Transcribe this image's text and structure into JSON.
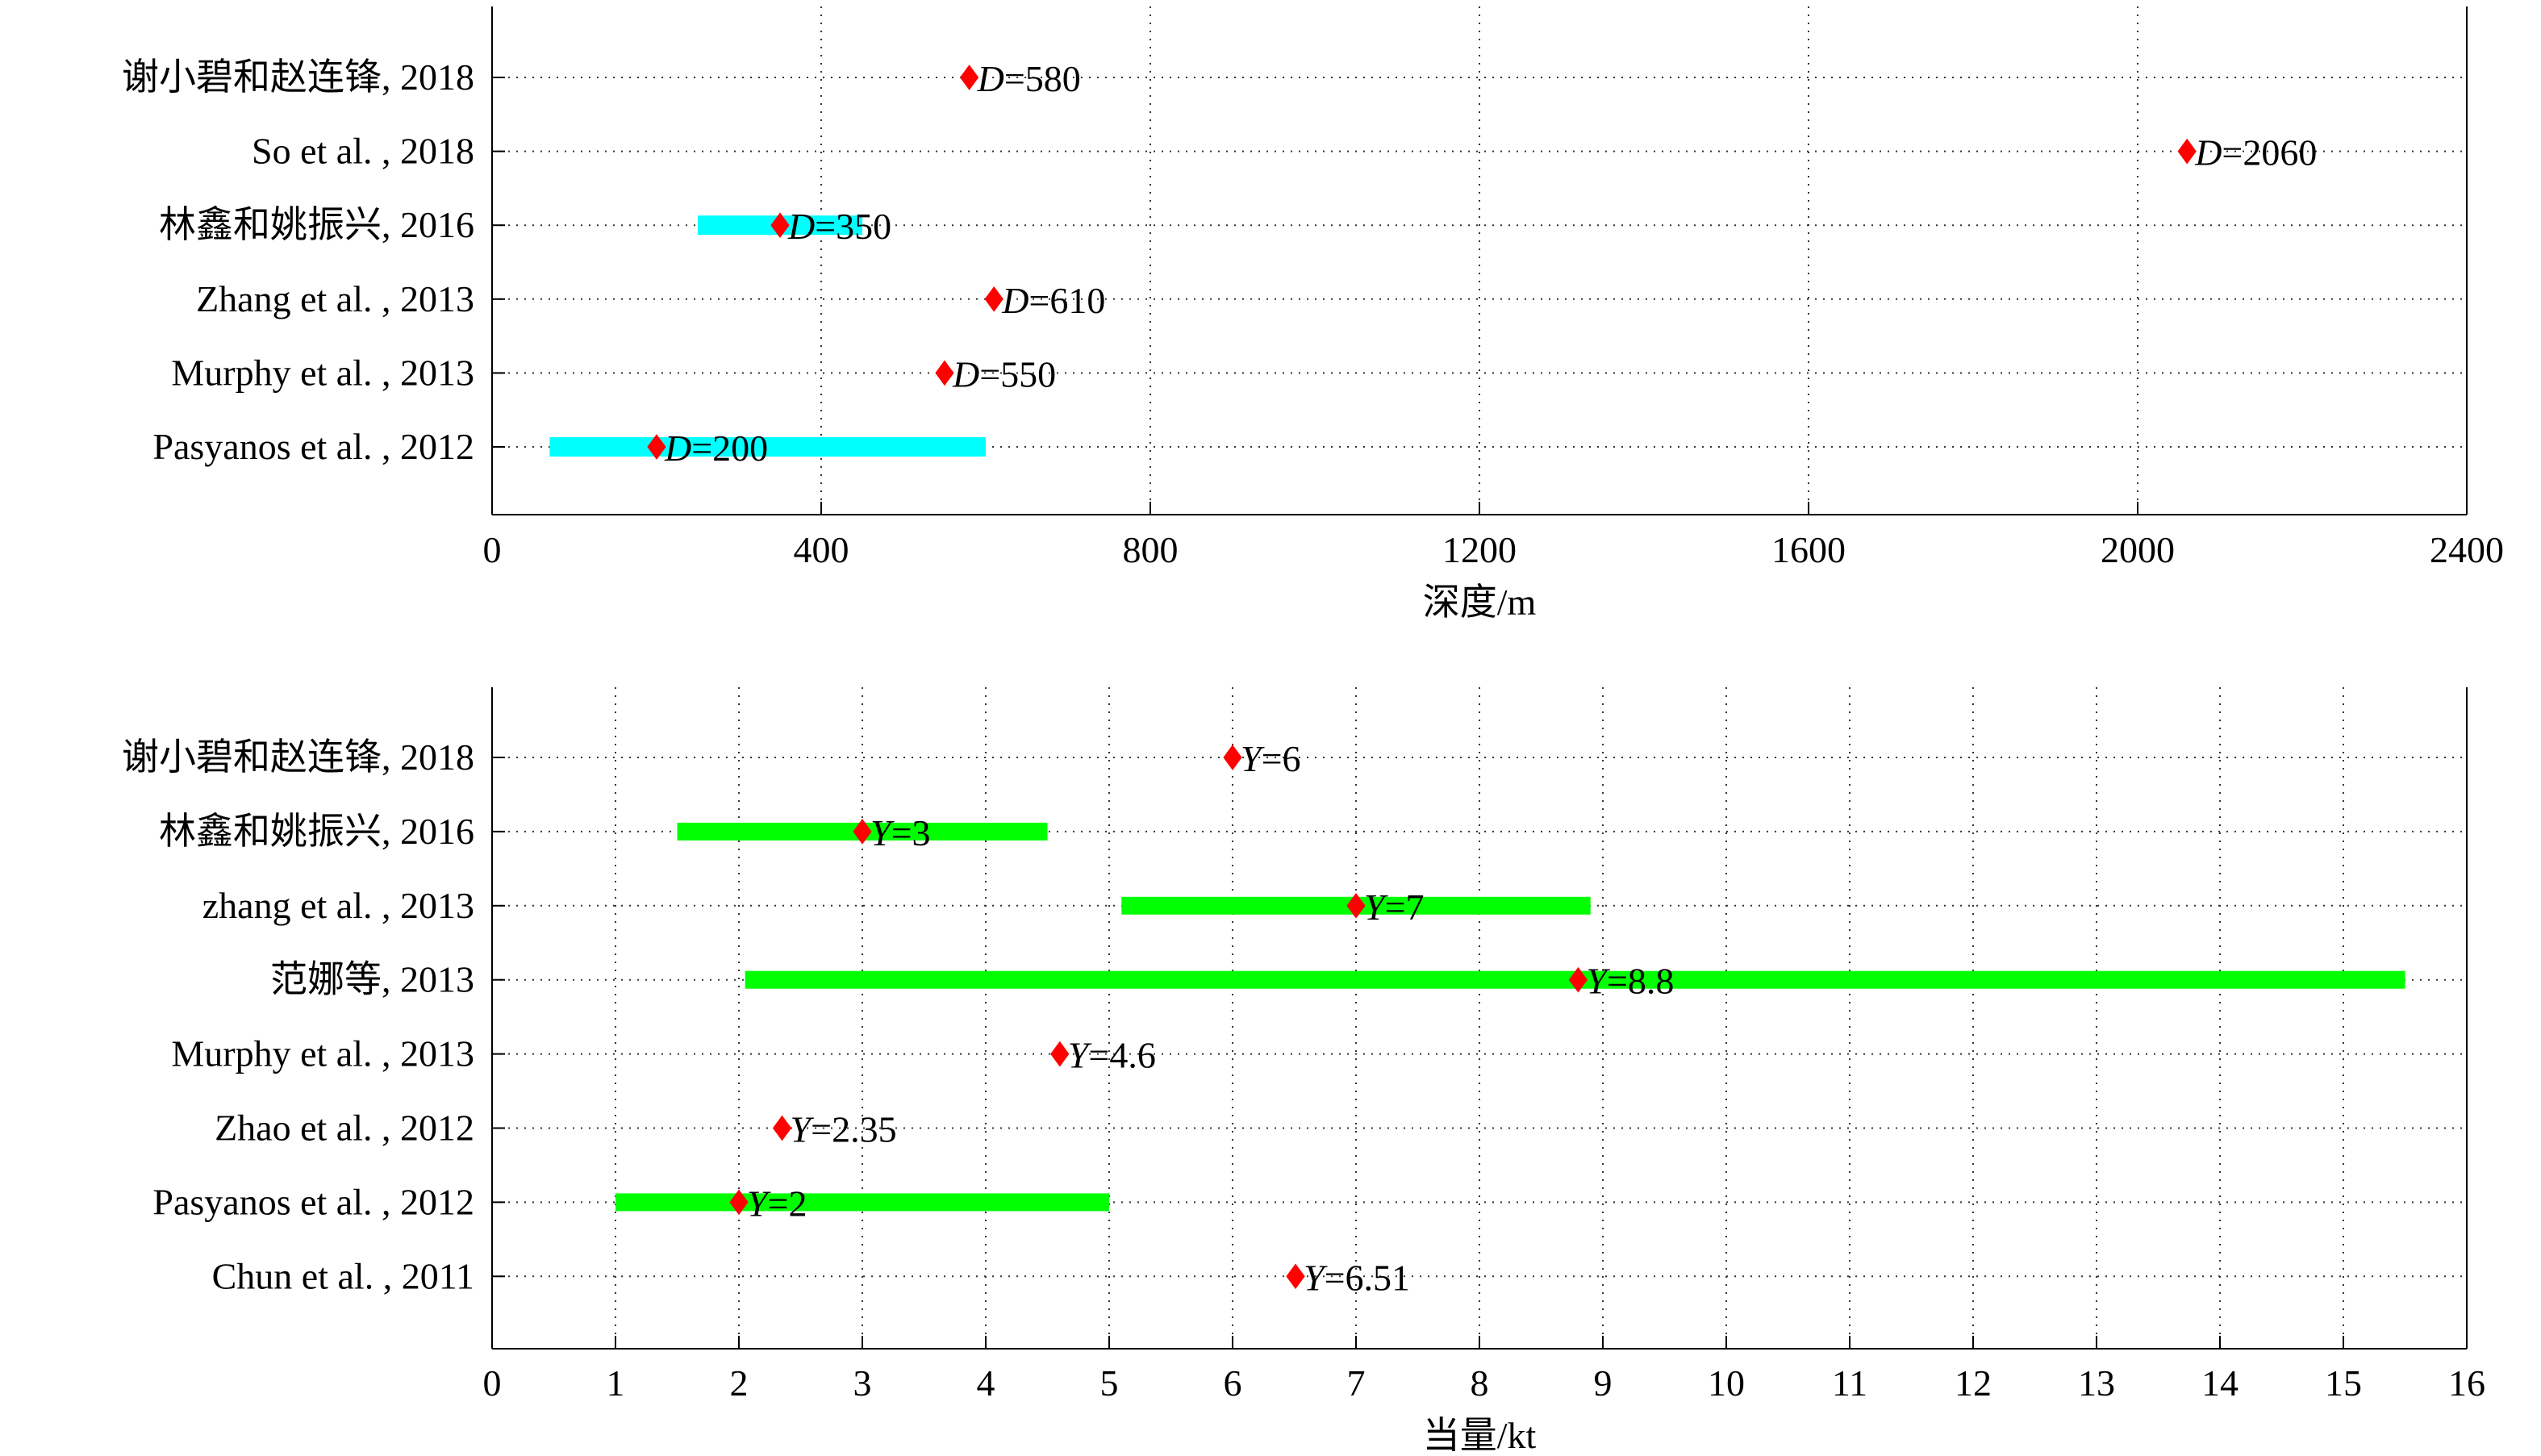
{
  "chart_data": [
    {
      "type": "range-dot",
      "xlabel": "深度/m",
      "xlim": [
        0,
        2400
      ],
      "xticks": [
        0,
        400,
        800,
        1200,
        1600,
        2000,
        2400
      ],
      "grid": true,
      "estimate_color": "#ff0000",
      "range_color": "#00ffff",
      "marker": "diamond",
      "value_symbol": "D",
      "rows": [
        {
          "label": "谢小碧和赵连锋, 2018",
          "value": 580,
          "value_text": "=580",
          "range": null
        },
        {
          "label": "So et al. , 2018",
          "value": 2060,
          "value_text": "=2060",
          "range": null
        },
        {
          "label": "林鑫和姚振兴, 2016",
          "value": 350,
          "value_text": "=350",
          "range": [
            250,
            450
          ]
        },
        {
          "label": "Zhang et al. , 2013",
          "value": 610,
          "value_text": "=610",
          "range": null
        },
        {
          "label": "Murphy et al. , 2013",
          "value": 550,
          "value_text": "=550",
          "range": null
        },
        {
          "label": "Pasyanos et al. , 2012",
          "value": 200,
          "value_text": "=200",
          "range": [
            70,
            600
          ]
        }
      ]
    },
    {
      "type": "range-dot",
      "xlabel": "当量/kt",
      "xlim": [
        0,
        16
      ],
      "xticks": [
        0,
        1,
        2,
        3,
        4,
        5,
        6,
        7,
        8,
        9,
        10,
        11,
        12,
        13,
        14,
        15,
        16
      ],
      "grid": true,
      "estimate_color": "#ff0000",
      "range_color": "#00ff00",
      "marker": "diamond",
      "value_symbol": "Y",
      "rows": [
        {
          "label": "谢小碧和赵连锋, 2018",
          "value": 6,
          "value_text": "=6",
          "range": null
        },
        {
          "label": "林鑫和姚振兴, 2016",
          "value": 3,
          "value_text": "=3",
          "range": [
            1.5,
            4.5
          ]
        },
        {
          "label": "zhang et al. , 2013",
          "value": 7,
          "value_text": "=7",
          "range": [
            5.1,
            8.9
          ]
        },
        {
          "label": "范娜等, 2013",
          "value": 8.8,
          "value_text": "=8.8",
          "range": [
            2.05,
            15.5
          ]
        },
        {
          "label": "Murphy et al. , 2013",
          "value": 4.6,
          "value_text": "=4.6",
          "range": null
        },
        {
          "label": "Zhao et al. , 2012",
          "value": 2.35,
          "value_text": "=2.35",
          "range": null
        },
        {
          "label": "Pasyanos et al. , 2012",
          "value": 2,
          "value_text": "=2",
          "range": [
            1,
            5
          ]
        },
        {
          "label": "Chun et al. , 2011",
          "value": 6.51,
          "value_text": "=6.51",
          "range": null
        }
      ]
    }
  ]
}
